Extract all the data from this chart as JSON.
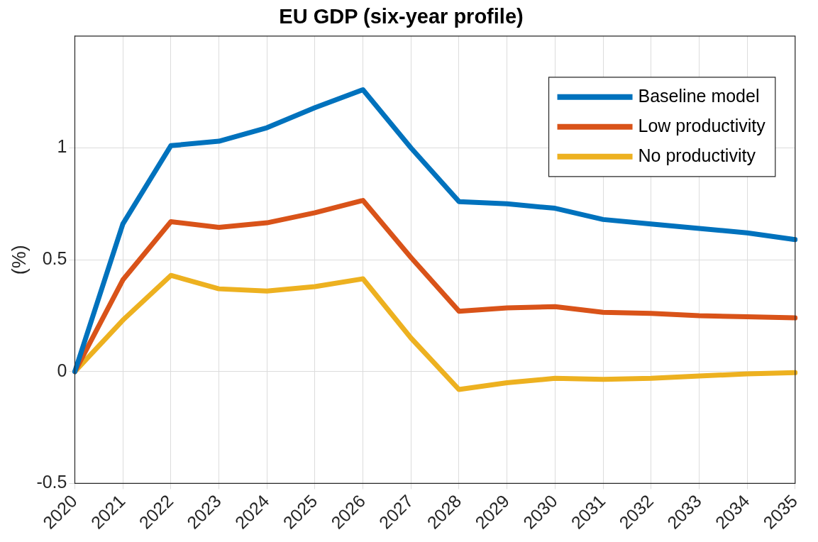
{
  "chart_data": {
    "type": "line",
    "title": "EU GDP (six-year profile)",
    "ylabel": "(%)",
    "categories": [
      "2020",
      "2021",
      "2022",
      "2023",
      "2024",
      "2025",
      "2026",
      "2027",
      "2028",
      "2029",
      "2030",
      "2031",
      "2032",
      "2033",
      "2034",
      "2035"
    ],
    "series": [
      {
        "name": "Baseline model",
        "color": "#0072bd",
        "values": [
          0,
          0.66,
          1.01,
          1.03,
          1.09,
          1.18,
          1.26,
          1.0,
          0.76,
          0.75,
          0.73,
          0.68,
          0.66,
          0.64,
          0.62,
          0.59
        ]
      },
      {
        "name": "Low productivity",
        "color": "#d95319",
        "values": [
          0,
          0.41,
          0.67,
          0.645,
          0.665,
          0.71,
          0.765,
          0.51,
          0.27,
          0.285,
          0.29,
          0.265,
          0.26,
          0.25,
          0.245,
          0.24
        ]
      },
      {
        "name": "No productivity",
        "color": "#edb120",
        "values": [
          0,
          0.23,
          0.43,
          0.37,
          0.36,
          0.38,
          0.415,
          0.15,
          -0.08,
          -0.05,
          -0.03,
          -0.035,
          -0.03,
          -0.02,
          -0.01,
          -0.005
        ]
      }
    ],
    "ylim": [
      -0.5,
      1.5
    ],
    "yticks": [
      -0.5,
      0,
      0.5,
      1
    ],
    "grid": true,
    "legend": "top right",
    "marker": "none",
    "line_style": "solid"
  }
}
